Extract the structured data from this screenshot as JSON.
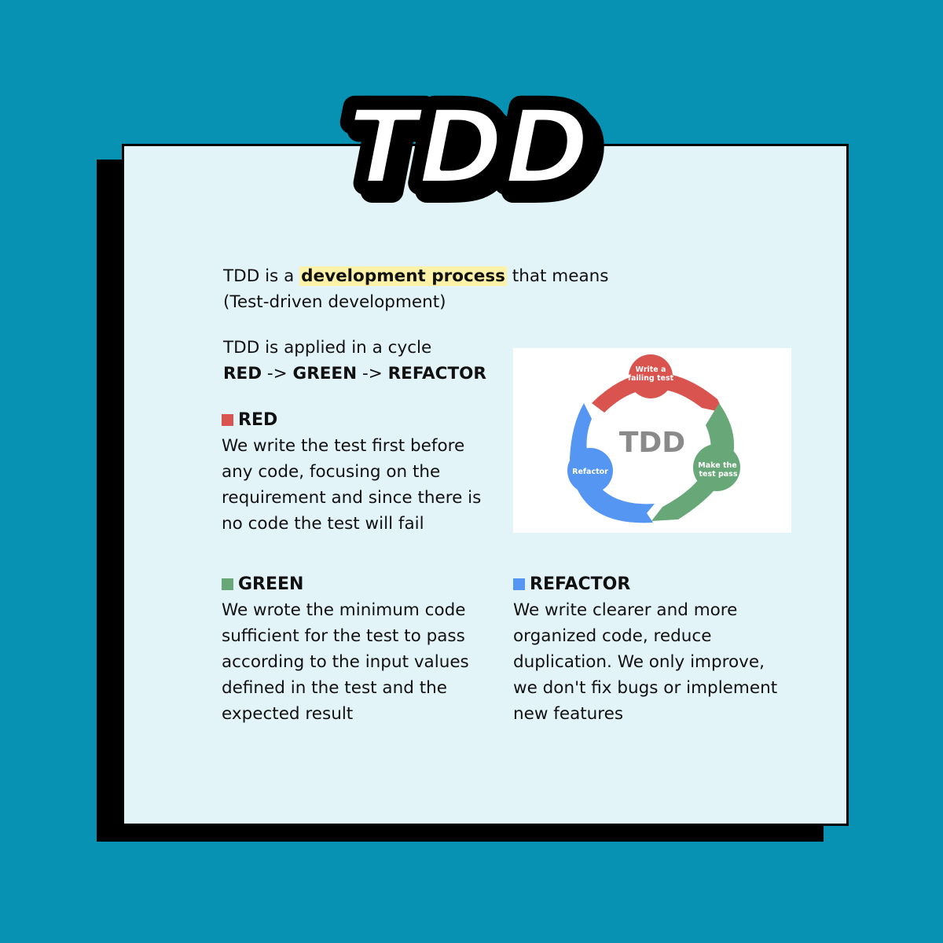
{
  "title": "TDD",
  "intro": {
    "before": "TDD is a ",
    "highlight": "development process",
    "after": " that means",
    "line2": "(Test-driven development)"
  },
  "cycle": {
    "line1": "TDD is applied in a cycle",
    "red": "RED",
    "arrow1": " -> ",
    "green": "GREEN",
    "arrow2": " -> ",
    "refactor": "REFACTOR"
  },
  "sections": {
    "red": {
      "title": "RED",
      "color": "#d9534f",
      "lines": [
        "We write the test first before",
        "any code, focusing on the",
        "requirement and since there is",
        "no code the test will fail"
      ]
    },
    "green": {
      "title": "GREEN",
      "color": "#68a878",
      "lines": [
        "We wrote the minimum code",
        "sufficient for the test to pass",
        "according to the input values",
        "defined in the test and the",
        "expected result"
      ]
    },
    "refactor": {
      "title": "REFACTOR",
      "color": "#5596f2",
      "lines": [
        "We write clearer and more",
        "organized code, reduce",
        "duplication. We only improve,",
        "we don't fix bugs or implement",
        "new features"
      ]
    }
  },
  "diagram": {
    "center": "TDD",
    "red_label_1": "Write a",
    "red_label_2": "failing test",
    "green_label_1": "Make the",
    "green_label_2": "test pass",
    "blue_label": "Refactor",
    "colors": {
      "red": "#d9534f",
      "green": "#68a878",
      "blue": "#5596f2",
      "center_text": "#8a8a8a"
    }
  }
}
